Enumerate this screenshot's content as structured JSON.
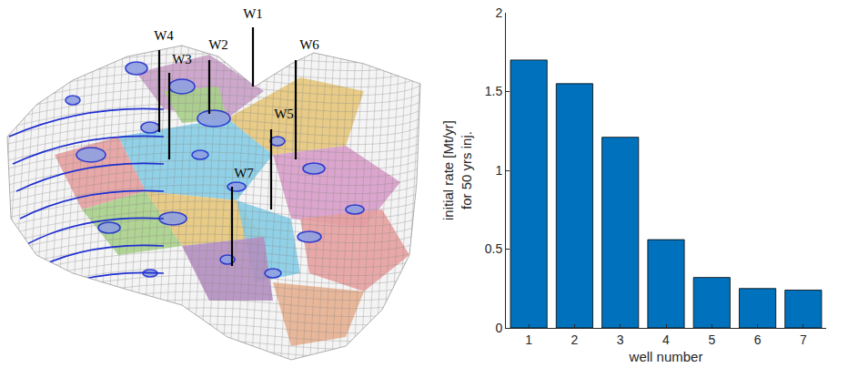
{
  "map": {
    "wells": [
      "W1",
      "W2",
      "W3",
      "W4",
      "W5",
      "W6",
      "W7"
    ]
  },
  "chart_data": {
    "type": "bar",
    "categories": [
      "1",
      "2",
      "3",
      "4",
      "5",
      "6",
      "7"
    ],
    "values": [
      1.7,
      1.55,
      1.21,
      0.56,
      0.32,
      0.25,
      0.24
    ],
    "color": "#0072bd",
    "x_label": "well number",
    "y_label": [
      "initial rate [Mt/yr]",
      "for 50 yrs inj."
    ],
    "ylim": [
      0,
      2
    ],
    "yticks": [
      0,
      0.5,
      1,
      1.5,
      2
    ],
    "grid": false
  }
}
